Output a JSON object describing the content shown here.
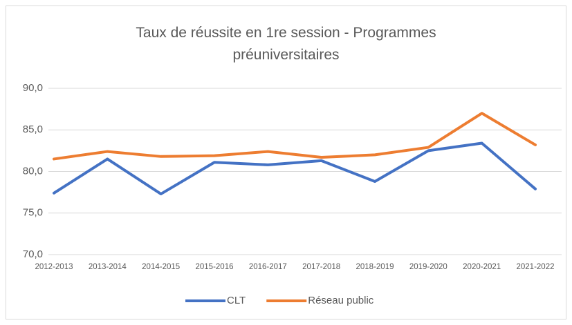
{
  "chart_data": {
    "type": "line",
    "title": "Taux de réussite en 1re session - Programmes préuniversitaires",
    "categories": [
      "2012-2013",
      "2013-2014",
      "2014-2015",
      "2015-2016",
      "2016-2017",
      "2017-2018",
      "2018-2019",
      "2019-2020",
      "2020-2021",
      "2021-2022"
    ],
    "series": [
      {
        "name": "CLT",
        "color": "#4472c4",
        "values": [
          77.4,
          81.5,
          77.3,
          81.1,
          80.8,
          81.3,
          78.8,
          82.5,
          83.4,
          77.9
        ]
      },
      {
        "name": "Réseau public",
        "color": "#ed7d31",
        "values": [
          81.5,
          82.4,
          81.8,
          81.9,
          82.4,
          81.7,
          82.0,
          82.9,
          87.0,
          83.2
        ]
      }
    ],
    "ylim": [
      70,
      90
    ],
    "yticks": [
      {
        "value": 70,
        "label": "70,0"
      },
      {
        "value": 75,
        "label": "75,0"
      },
      {
        "value": 80,
        "label": "80,0"
      },
      {
        "value": 85,
        "label": "85,0"
      },
      {
        "value": 90,
        "label": "90,0"
      }
    ],
    "grid": true,
    "legend": "bottom"
  }
}
